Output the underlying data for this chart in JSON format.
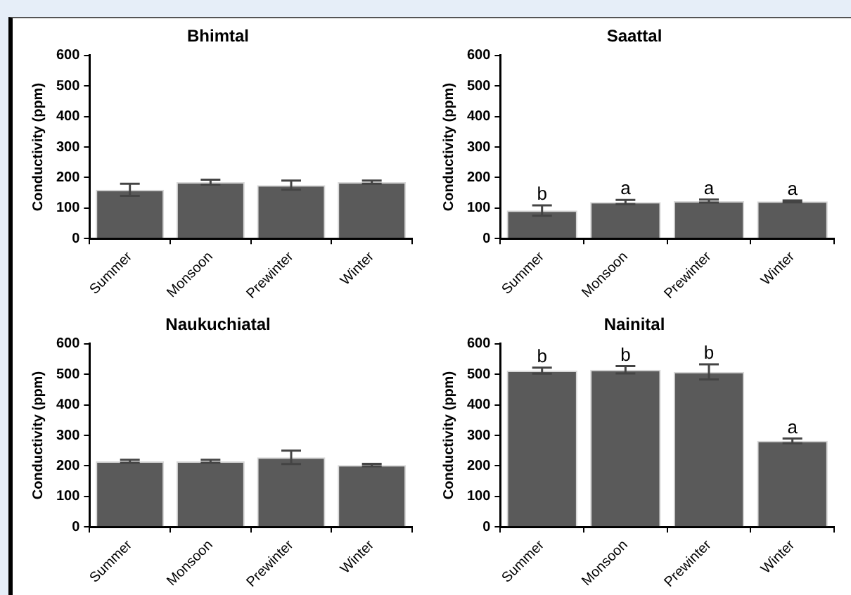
{
  "chart_data": [
    {
      "type": "bar",
      "title": "Bhimtal",
      "ylabel": "Conductivity (ppm)",
      "categories": [
        "Summer",
        "Monsoon",
        "Prewinter",
        "Winter"
      ],
      "values": [
        160,
        185,
        175,
        185
      ],
      "errors": [
        20,
        8,
        15,
        5
      ],
      "color": "#5a5a5a",
      "ylim": [
        0,
        600
      ],
      "yticks": [
        0,
        100,
        200,
        300,
        400,
        500,
        600
      ],
      "grid": false,
      "legend": false
    },
    {
      "type": "bar",
      "title": "Saattal",
      "ylabel": "Conductivity (ppm)",
      "categories": [
        "Summer",
        "Monsoon",
        "Prewinter",
        "Winter"
      ],
      "values": [
        92,
        120,
        123,
        122
      ],
      "errors": [
        17,
        7,
        5,
        3
      ],
      "color": "#5a5a5a",
      "ylim": [
        0,
        600
      ],
      "yticks": [
        0,
        100,
        200,
        300,
        400,
        500,
        600
      ],
      "grid": false,
      "legend": false,
      "annotations": [
        {
          "text": "b",
          "x": "Summer",
          "y": 109
        },
        {
          "text": "a",
          "x": "Monsoon",
          "y": 127
        },
        {
          "text": "a",
          "x": "Prewinter",
          "y": 128
        },
        {
          "text": "a",
          "x": "Winter",
          "y": 125
        }
      ]
    },
    {
      "type": "bar",
      "title": "Naukuchiatal",
      "ylabel": "Conductivity (ppm)",
      "categories": [
        "Summer",
        "Monsoon",
        "Prewinter",
        "Winter"
      ],
      "values": [
        215,
        215,
        228,
        203
      ],
      "errors": [
        5,
        5,
        22,
        4
      ],
      "color": "#5a5a5a",
      "ylim": [
        0,
        600
      ],
      "yticks": [
        0,
        100,
        200,
        300,
        400,
        500,
        600
      ],
      "grid": false,
      "legend": false
    },
    {
      "type": "bar",
      "title": "Nainital",
      "ylabel": "Conductivity (ppm)",
      "categories": [
        "Summer",
        "Monsoon",
        "Prewinter",
        "Winter"
      ],
      "values": [
        512,
        515,
        508,
        282
      ],
      "errors": [
        10,
        12,
        25,
        8
      ],
      "color": "#5a5a5a",
      "ylim": [
        0,
        600
      ],
      "yticks": [
        0,
        100,
        200,
        300,
        400,
        500,
        600
      ],
      "grid": false,
      "legend": false,
      "annotations": [
        {
          "text": "b",
          "x": "Summer",
          "y": 522
        },
        {
          "text": "b",
          "x": "Monsoon",
          "y": 527
        },
        {
          "text": "b",
          "x": "Prewinter",
          "y": 533
        },
        {
          "text": "a",
          "x": "Winter",
          "y": 290
        }
      ]
    }
  ]
}
